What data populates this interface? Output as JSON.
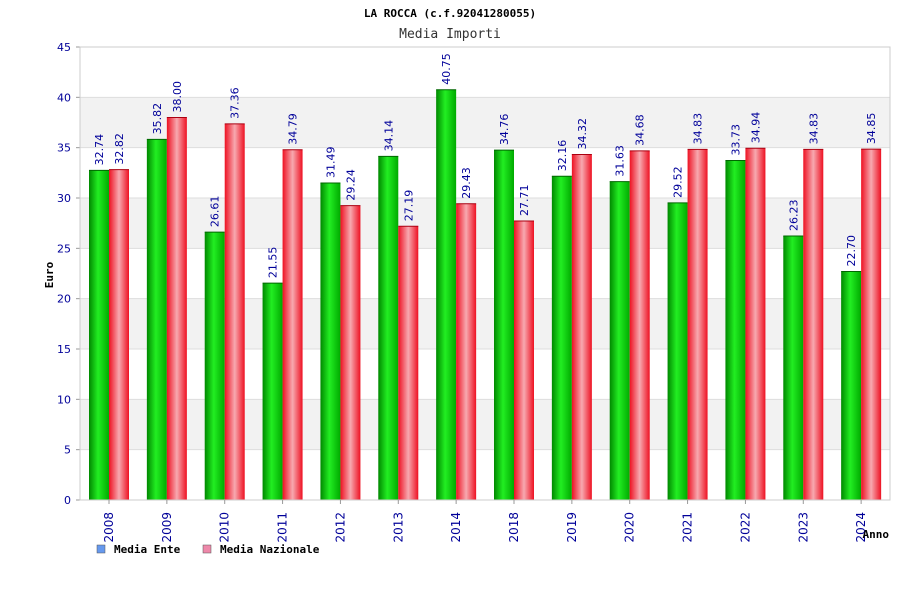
{
  "chart_data": {
    "type": "bar",
    "title": "LA ROCCA (c.f.92041280055)",
    "subtitle": "Media Importi",
    "xlabel": "Anno",
    "ylabel": "Euro",
    "ylim": [
      0,
      45
    ],
    "yticks": [
      0,
      5,
      10,
      15,
      20,
      25,
      30,
      35,
      40,
      45
    ],
    "grid": true,
    "legend_position": "bottom-left",
    "categories": [
      "2008",
      "2009",
      "2010",
      "2011",
      "2012",
      "2013",
      "2014",
      "2018",
      "2019",
      "2020",
      "2021",
      "2022",
      "2023",
      "2024"
    ],
    "series": [
      {
        "name": "Media Ente",
        "values": [
          32.74,
          35.82,
          26.61,
          21.55,
          31.49,
          34.14,
          40.75,
          34.76,
          32.16,
          31.63,
          29.52,
          33.73,
          26.23,
          22.7
        ],
        "labels": [
          "32.74",
          "35.82",
          "26.61",
          "21.55",
          "31.49",
          "34.14",
          "40.75",
          "34.76",
          "32.16",
          "31.63",
          "29.52",
          "33.73",
          "26.23",
          "22.70"
        ]
      },
      {
        "name": "Media Nazionale",
        "values": [
          32.82,
          38.0,
          37.36,
          34.79,
          29.24,
          27.19,
          29.43,
          27.71,
          34.32,
          34.68,
          34.83,
          34.94,
          34.83,
          34.85
        ],
        "labels": [
          "32.82",
          "38.00",
          "37.36",
          "34.79",
          "29.24",
          "27.19",
          "29.43",
          "27.71",
          "34.32",
          "34.68",
          "34.83",
          "34.94",
          "34.83",
          "34.85"
        ]
      }
    ],
    "colors": {
      "series_1": "#00cc00",
      "series_2": "#ff2233",
      "legend_1": "#6699ee",
      "legend_2": "#ee88aa",
      "band": "#f2f2f2",
      "grid": "#dddddd"
    }
  }
}
